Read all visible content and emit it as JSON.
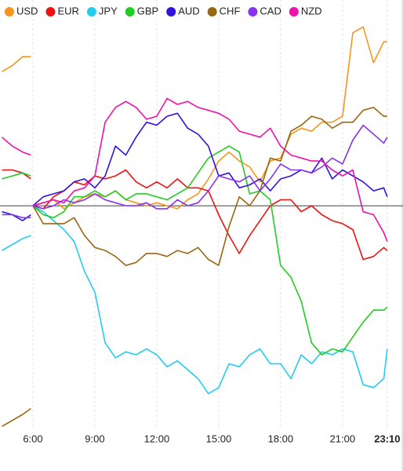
{
  "chart_data": {
    "type": "line",
    "x": [
      4.5,
      5.0,
      5.5,
      5.9,
      5.95,
      6.0,
      6.5,
      7.0,
      7.5,
      8.0,
      8.5,
      9.0,
      9.5,
      10.0,
      10.5,
      11.0,
      11.5,
      12.0,
      12.5,
      13.0,
      13.5,
      14.0,
      14.5,
      15.0,
      15.5,
      16.0,
      16.5,
      17.0,
      17.5,
      18.0,
      18.5,
      19.0,
      19.5,
      20.0,
      20.5,
      21.0,
      21.5,
      22.0,
      22.5,
      23.0,
      23.1667
    ],
    "xlim": [
      4.405,
      23.93
    ],
    "xticks": [
      {
        "value": 6,
        "label": "6:00"
      },
      {
        "value": 9,
        "label": "9:00"
      },
      {
        "value": 12,
        "label": "12:00"
      },
      {
        "value": 15,
        "label": "15:00"
      },
      {
        "value": 18,
        "label": "18:00"
      },
      {
        "value": 21,
        "label": "21:00"
      },
      {
        "value": 23.1667,
        "label": "23:10"
      }
    ],
    "ylim": [
      -7.5,
      6.9
    ],
    "grid": true,
    "series": [
      {
        "name": "USD",
        "color": "#f7941d",
        "values": [
          4.5,
          4.7,
          5.0,
          5.0,
          null,
          0,
          0.1,
          0.2,
          -0.1,
          0.1,
          0.3,
          0.4,
          0.3,
          0.5,
          0.2,
          0.1,
          0.0,
          0.1,
          0.0,
          -0.1,
          0.2,
          0.4,
          0.9,
          1.5,
          1.8,
          1.5,
          1.3,
          0.8,
          1.5,
          1.6,
          2.4,
          2.6,
          2.5,
          2.8,
          2.8,
          3.0,
          5.8,
          6.0,
          4.8,
          5.5,
          5.5
        ]
      },
      {
        "name": "EUR",
        "color": "#ee1111",
        "values": [
          1.2,
          1.2,
          1.1,
          0.9,
          null,
          0,
          -0.1,
          0.3,
          0.5,
          0.8,
          0.7,
          1.0,
          0.9,
          1.0,
          1.2,
          0.8,
          0.6,
          0.8,
          0.6,
          0.9,
          0.6,
          0.6,
          0.5,
          -0.3,
          -1.0,
          -1.6,
          -1.0,
          -0.5,
          0.0,
          0.2,
          0.2,
          -0.2,
          0.0,
          -0.3,
          -0.5,
          -0.6,
          -0.8,
          -1.8,
          -1.7,
          -1.4,
          -1.5
        ]
      },
      {
        "name": "JPY",
        "color": "#22ccee",
        "values": [
          -1.5,
          -1.3,
          -1.1,
          -1.0,
          null,
          0,
          -0.2,
          -0.5,
          -0.8,
          -1.2,
          -2.2,
          -2.9,
          -4.6,
          -5.1,
          -4.9,
          -5.0,
          -4.8,
          -5.0,
          -5.4,
          -5.2,
          -5.5,
          -5.8,
          -6.3,
          -6.1,
          -5.3,
          -5.4,
          -5.0,
          -4.8,
          -5.3,
          -5.3,
          -5.8,
          -5.0,
          -5.3,
          -4.9,
          -5.0,
          -4.8,
          -4.9,
          -6.0,
          -6.1,
          -5.8,
          -4.8
        ]
      },
      {
        "name": "GBP",
        "color": "#22cc22",
        "values": [
          0.9,
          1.0,
          1.1,
          1.0,
          null,
          0,
          -0.3,
          -0.4,
          -0.2,
          0.3,
          0.3,
          0.5,
          0.3,
          0.5,
          0.2,
          0.4,
          0.4,
          0.3,
          0.2,
          0.4,
          0.6,
          1.1,
          1.6,
          1.8,
          2.0,
          1.8,
          0.4,
          0.5,
          0.2,
          -2.0,
          -2.4,
          -3.2,
          -4.6,
          -5.0,
          -4.8,
          -4.9,
          -4.4,
          -3.9,
          -3.5,
          -3.5,
          -3.4
        ]
      },
      {
        "name": "AUD",
        "color": "#3311dd",
        "values": [
          -0.2,
          -0.3,
          -0.5,
          -0.3,
          null,
          0,
          0.3,
          0.4,
          0.5,
          0.8,
          0.9,
          0.6,
          1.0,
          2.0,
          1.7,
          2.3,
          2.8,
          2.7,
          3.0,
          3.1,
          2.6,
          2.4,
          2.0,
          1.0,
          1.1,
          0.6,
          0.7,
          0.9,
          0.5,
          0.9,
          1.0,
          1.2,
          1.1,
          1.6,
          0.9,
          1.2,
          1.0,
          0.8,
          0.5,
          0.6,
          0.3
        ]
      },
      {
        "name": "CHF",
        "color": "#996611",
        "values": [
          -7.4,
          -7.2,
          -7.0,
          -6.8,
          null,
          0,
          -0.6,
          -0.6,
          -0.6,
          -0.4,
          -1.0,
          -1.4,
          -1.5,
          -1.7,
          -2.0,
          -1.9,
          -1.6,
          -1.6,
          -1.7,
          -1.5,
          -1.6,
          -1.4,
          -1.8,
          -2.0,
          -0.7,
          0.3,
          0.0,
          0.5,
          1.6,
          1.5,
          2.5,
          2.7,
          3.0,
          2.9,
          2.6,
          2.8,
          2.8,
          3.2,
          3.3,
          3.0,
          3.0
        ]
      },
      {
        "name": "CAD",
        "color": "#8833ee",
        "values": [
          -0.3,
          -0.3,
          -0.4,
          -0.4,
          null,
          0,
          -0.1,
          0.0,
          0.2,
          0.1,
          0.2,
          0.4,
          0.2,
          0.1,
          0.0,
          0.0,
          0.1,
          -0.1,
          -0.1,
          0.2,
          0.0,
          0.1,
          0.5,
          1.0,
          0.9,
          0.8,
          1.0,
          0.5,
          0.9,
          1.4,
          1.2,
          1.2,
          1.1,
          1.3,
          1.6,
          1.4,
          2.2,
          2.7,
          2.4,
          2.1,
          2.3
        ]
      },
      {
        "name": "NZD",
        "color": "#ee11aa",
        "values": [
          2.3,
          2.0,
          1.8,
          1.7,
          null,
          0,
          0.1,
          0.2,
          0.1,
          0.5,
          0.6,
          1.0,
          2.8,
          3.3,
          3.5,
          3.3,
          2.9,
          3.0,
          3.6,
          3.4,
          3.5,
          3.3,
          3.2,
          3.1,
          2.9,
          2.5,
          2.4,
          2.3,
          2.6,
          2.0,
          1.7,
          1.6,
          1.5,
          1.5,
          1.2,
          1.0,
          1.2,
          -0.2,
          -0.3,
          -0.9,
          -1.2
        ]
      }
    ]
  }
}
